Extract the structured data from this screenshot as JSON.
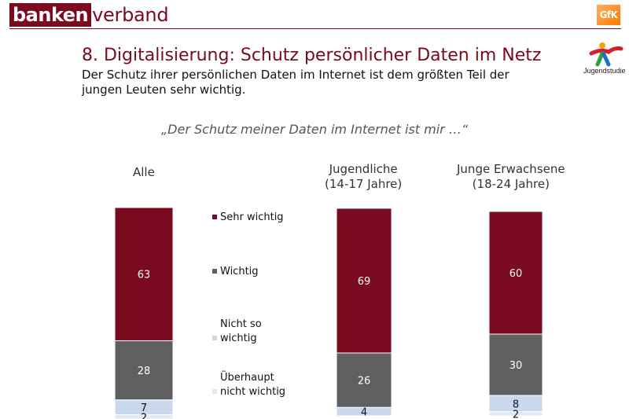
{
  "header": {
    "logo_strong": "banken",
    "logo_light": "verband",
    "partner_logo": "GfK",
    "study_logo": "Jugendstudie"
  },
  "slide": {
    "title": "8. Digitalisierung: Schutz persönlicher Daten im Netz",
    "subtitle": "Der Schutz ihrer persönlichen Daten im Internet ist dem größten Teil der jungen Leuten sehr wichtig.",
    "quote": "„Der Schutz meiner Daten im Internet ist mir …“"
  },
  "colors": {
    "brand": "#7a0a1e",
    "sehr_wichtig": "#7a0a1e",
    "wichtig": "#5f5f5f",
    "nicht_so_wichtig": "#c9d8ec",
    "ueberhaupt_nicht_wichtig": "#dfe8f3"
  },
  "chart_data": {
    "type": "bar",
    "stacked": true,
    "unit": "%",
    "categories": [
      "Alle",
      "Jugendliche\n(14-17 Jahre)",
      "Junge Erwachsene\n(18-24 Jahre)"
    ],
    "series": [
      {
        "name": "Sehr wichtig",
        "values": [
          63,
          69,
          60
        ]
      },
      {
        "name": "Wichtig",
        "values": [
          28,
          26,
          30
        ]
      },
      {
        "name": "Nicht so wichtig",
        "values": [
          7,
          4,
          8
        ]
      },
      {
        "name": "Überhaupt nicht wichtig",
        "values": [
          2,
          0,
          2
        ]
      }
    ],
    "data_labels": [
      [
        "63",
        "28",
        "7",
        "2"
      ],
      [
        "69",
        "26",
        "4",
        ""
      ],
      [
        "60",
        "30",
        "8",
        "2"
      ]
    ],
    "legend": [
      "Sehr wichtig",
      "Wichtig",
      "Nicht so\nwichtig",
      "Überhaupt\nnicht wichtig"
    ],
    "legend_placement": "between first and second bar"
  }
}
